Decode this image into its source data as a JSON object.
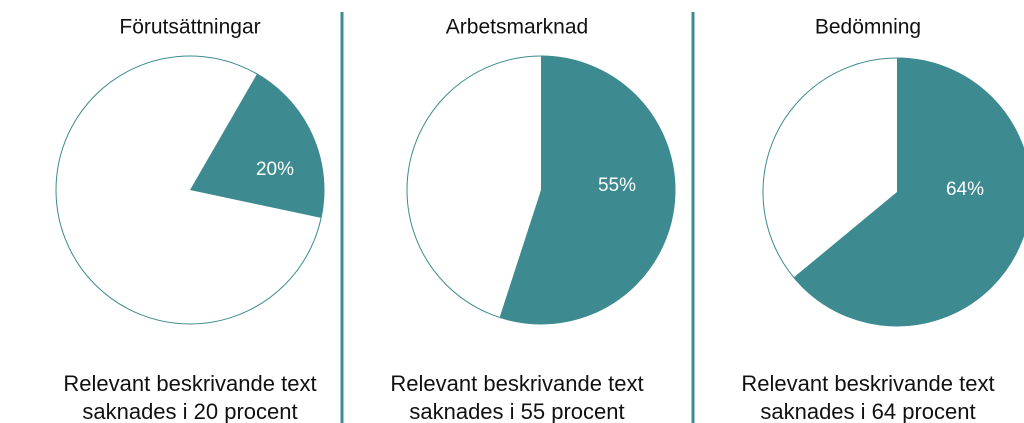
{
  "chart_data": [
    {
      "type": "pie",
      "title": "Förutsättningar",
      "values": [
        20
      ],
      "value_labels": [
        "20%"
      ],
      "color": "#3d8b90",
      "caption": [
        "Relevant beskrivande text",
        "saknades i 20 procent"
      ]
    },
    {
      "type": "pie",
      "title": "Arbetsmarknad",
      "values": [
        55
      ],
      "value_labels": [
        "55%"
      ],
      "color": "#3d8b90",
      "caption": [
        "Relevant beskrivande text",
        "saknades i 55 procent"
      ]
    },
    {
      "type": "pie",
      "title": "Bedömning",
      "values": [
        64
      ],
      "value_labels": [
        "64%"
      ],
      "color": "#3d8b90",
      "caption": [
        "Relevant beskrivande text",
        "saknades i 64 procent"
      ]
    }
  ]
}
